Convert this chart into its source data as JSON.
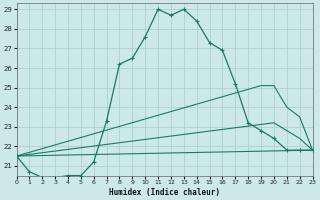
{
  "xlabel": "Humidex (Indice chaleur)",
  "bg_color": "#cce8e8",
  "grid_color": "#aacccc",
  "line_color": "#1a7a6a",
  "xlim": [
    0,
    23
  ],
  "ylim": [
    20.5,
    29.3
  ],
  "xticks": [
    0,
    1,
    2,
    3,
    4,
    5,
    6,
    7,
    8,
    9,
    10,
    11,
    12,
    13,
    14,
    15,
    16,
    17,
    18,
    19,
    20,
    21,
    22,
    23
  ],
  "yticks": [
    21,
    22,
    23,
    24,
    25,
    26,
    27,
    28,
    29
  ],
  "main_x": [
    0,
    1,
    2,
    3,
    4,
    5,
    6,
    7,
    8,
    9,
    10,
    11,
    12,
    13,
    14,
    15,
    16,
    17,
    18,
    19,
    20,
    21,
    22,
    23
  ],
  "main_y": [
    21.5,
    20.7,
    20.4,
    20.4,
    20.5,
    20.5,
    21.2,
    23.3,
    26.2,
    26.5,
    27.6,
    29.0,
    28.7,
    29.0,
    28.4,
    27.3,
    26.9,
    25.2,
    23.2,
    22.8,
    22.4,
    21.8,
    21.8,
    21.8
  ],
  "line2_x": [
    0,
    19,
    20,
    21,
    22,
    23
  ],
  "line2_y": [
    21.5,
    25.1,
    25.1,
    24.0,
    23.5,
    21.8
  ],
  "line3_x": [
    0,
    20,
    21,
    22,
    23
  ],
  "line3_y": [
    21.5,
    23.2,
    22.8,
    22.4,
    21.8
  ],
  "line4_x": [
    0,
    23
  ],
  "line4_y": [
    21.5,
    21.8
  ]
}
